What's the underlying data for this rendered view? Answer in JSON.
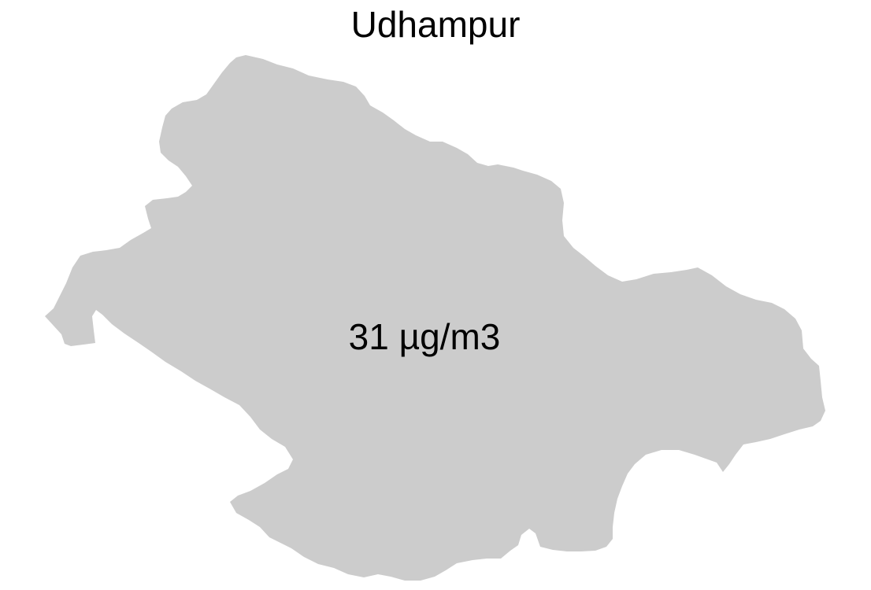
{
  "map": {
    "title": "Udhampur",
    "label": "31 µg/m3",
    "fill_color": "#cccccc",
    "background_color": "#ffffff"
  }
}
